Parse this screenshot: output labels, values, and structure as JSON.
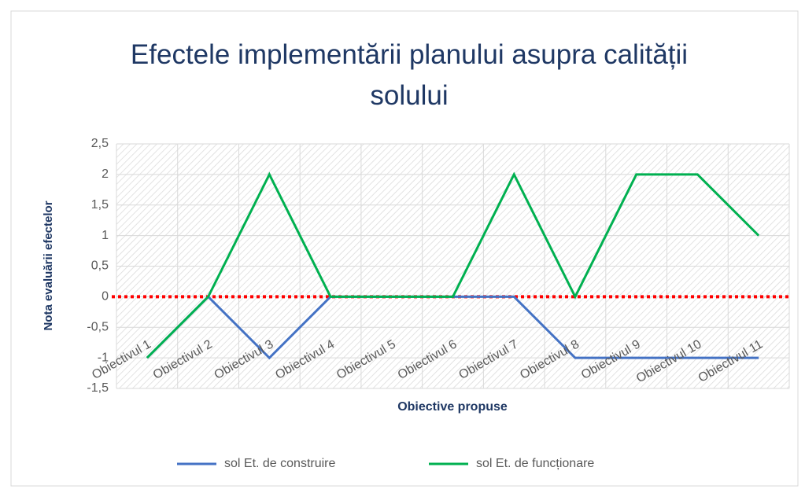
{
  "chart_data": {
    "type": "line",
    "title": "Efectele implementării planului asupra calității solului",
    "x_label": "Obiective propuse",
    "y_label": "Nota evaluării efectelor",
    "categories": [
      "Obiectivul 1",
      "Obiectivul 2",
      "Obiectivul 3",
      "Obiectivul 4",
      "Obiectivul 5",
      "Obiectivul 6",
      "Obiectivul 7",
      "Obiectivul 8",
      "Obiectivul 9",
      "Obiectivul 10",
      "Obiectivul 11"
    ],
    "series": [
      {
        "name": "sol Et. de construire",
        "color": "#4472c4",
        "values": [
          -1,
          0,
          -1,
          0,
          0,
          0,
          0,
          -1,
          -1,
          -1,
          -1
        ]
      },
      {
        "name": "sol Et. de funcționare",
        "color": "#00b050",
        "values": [
          -1,
          0,
          2,
          0,
          0,
          0,
          2,
          0,
          2,
          2,
          1
        ]
      }
    ],
    "ylim": [
      -1.5,
      2.5
    ],
    "yticks": [
      {
        "value": -1.5,
        "label": "-1,5"
      },
      -1,
      {
        "value": -0.5,
        "label": "-0,5"
      },
      0,
      {
        "value": 0.5,
        "label": "0,5"
      },
      1,
      {
        "value": 1.5,
        "label": "1,5"
      },
      2,
      {
        "value": 2.5,
        "label": "2,5"
      }
    ],
    "reference_line": {
      "value": 0,
      "color": "#ff0000"
    },
    "legend": "bottom"
  }
}
